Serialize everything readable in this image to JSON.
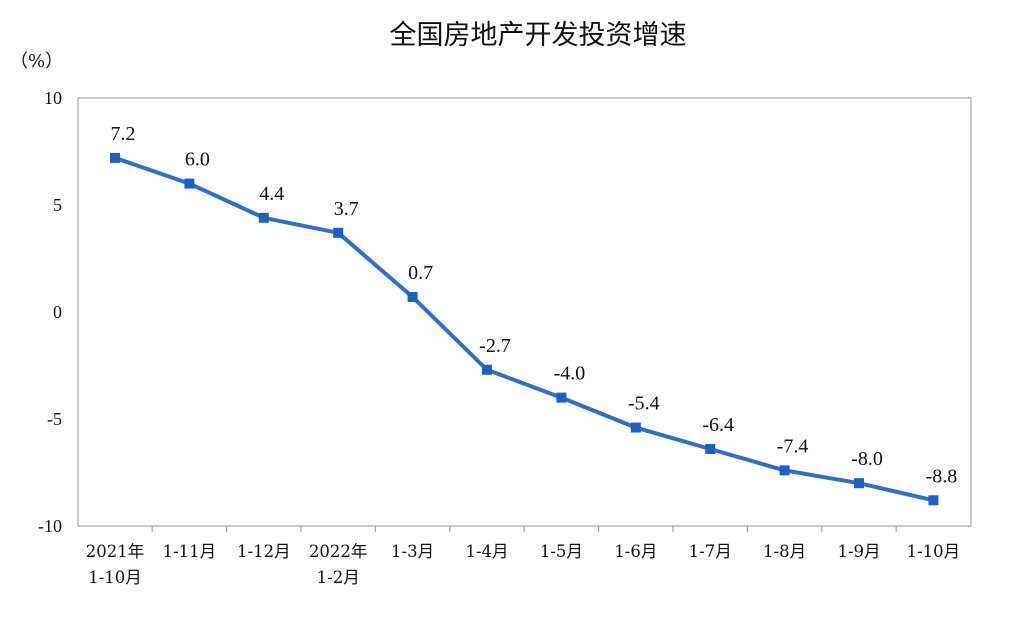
{
  "chart_data": {
    "type": "line",
    "title": "全国房地产开发投资增速",
    "unit_label": "（%）",
    "ylim": [
      -10,
      10
    ],
    "yticks": [
      10,
      5,
      0,
      -5,
      -10
    ],
    "categories": [
      [
        "2021年",
        "1-10月"
      ],
      [
        "1-11月"
      ],
      [
        "1-12月"
      ],
      [
        "2022年",
        "1-2月"
      ],
      [
        "1-3月"
      ],
      [
        "1-4月"
      ],
      [
        "1-5月"
      ],
      [
        "1-6月"
      ],
      [
        "1-7月"
      ],
      [
        "1-8月"
      ],
      [
        "1-9月"
      ],
      [
        "1-10月"
      ]
    ],
    "series": [
      {
        "values": [
          7.2,
          6.0,
          4.4,
          3.7,
          0.7,
          -2.7,
          -4.0,
          -5.4,
          -6.4,
          -7.4,
          -8.0,
          -8.8
        ],
        "data_labels": [
          "7.2",
          "6.0",
          "4.4",
          "3.7",
          "0.7",
          "-2.7",
          "-4.0",
          "-5.4",
          "-6.4",
          "-7.4",
          "-8.0",
          "-8.8"
        ]
      }
    ],
    "grid": false,
    "legend": "none",
    "colors": {
      "line": "#2f6fc6",
      "marker": "#1f5fc0",
      "frame": "#a6a6a6",
      "text": "#111111"
    }
  }
}
